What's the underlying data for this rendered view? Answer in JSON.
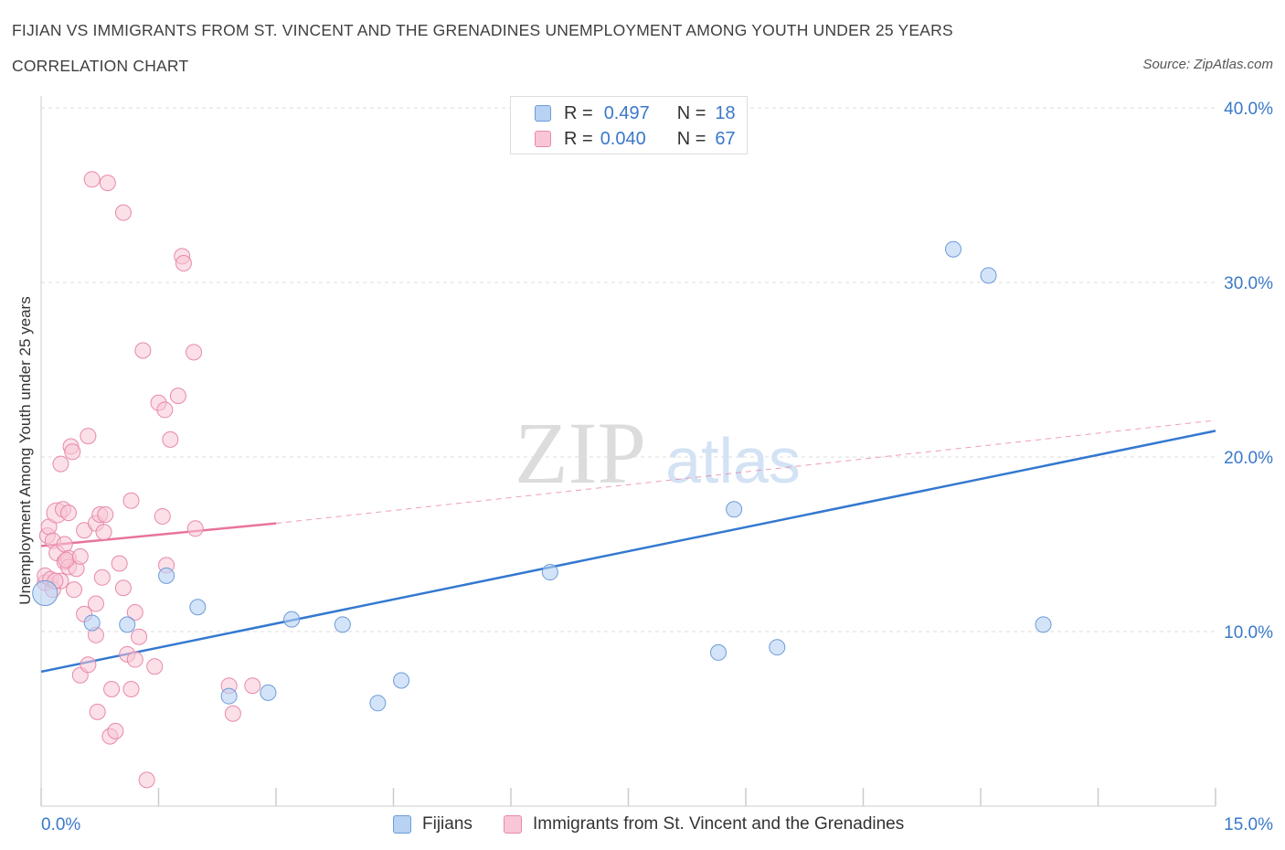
{
  "header": {
    "title": "FIJIAN VS IMMIGRANTS FROM ST. VINCENT AND THE GRENADINES UNEMPLOYMENT AMONG YOUTH UNDER 25 YEARS",
    "subtitle": "CORRELATION CHART",
    "source": "Source: ZipAtlas.com"
  },
  "watermark": {
    "zip": "ZIP",
    "atlas": "atlas"
  },
  "legend_top": {
    "r_label": "R =",
    "n_label": "N =",
    "rows": [
      {
        "r": "0.497",
        "n": "18"
      },
      {
        "r": "0.040",
        "n": "67"
      }
    ]
  },
  "colors": {
    "fijians_fill": "#b8d2f3",
    "fijians_stroke": "#6c9bd8",
    "fijians_line": "#3478d0",
    "svg_fill": "#f8c6d6",
    "svg_stroke": "#e889a9",
    "svg_line": "#e8749a",
    "axis_label": "#3a78c9",
    "grid": "#dddddd"
  },
  "chart_data": {
    "type": "scatter",
    "xlabel": "",
    "ylabel": "Unemployment Among Youth under 25 years",
    "xlim": [
      0,
      15
    ],
    "ylim": [
      0,
      40
    ],
    "x_tick_labels": [
      "0.0%",
      "15.0%"
    ],
    "y_ticks": [
      10,
      20,
      30,
      40
    ],
    "y_tick_labels": [
      "10.0%",
      "20.0%",
      "30.0%",
      "40.0%"
    ],
    "grid": true,
    "legend_position": "bottom",
    "series": [
      {
        "name": "Fijians",
        "r": 0.497,
        "n": 18,
        "trend": {
          "x0": 0,
          "y0": 7.7,
          "x1": 15,
          "y1": 21.5,
          "dashed_to": null
        },
        "points": [
          [
            0.05,
            12.2,
            1.6
          ],
          [
            0.65,
            10.5,
            1
          ],
          [
            1.1,
            10.4,
            1
          ],
          [
            1.6,
            13.2,
            1
          ],
          [
            2.0,
            11.4,
            1
          ],
          [
            2.4,
            6.3,
            1
          ],
          [
            2.9,
            6.5,
            1
          ],
          [
            3.2,
            10.7,
            1
          ],
          [
            3.85,
            10.4,
            1
          ],
          [
            4.3,
            5.9,
            1
          ],
          [
            4.6,
            7.2,
            1
          ],
          [
            6.5,
            13.4,
            1
          ],
          [
            8.65,
            8.8,
            1
          ],
          [
            8.85,
            17.0,
            1
          ],
          [
            9.4,
            9.1,
            1
          ],
          [
            11.65,
            31.9,
            1
          ],
          [
            12.1,
            30.4,
            1
          ],
          [
            12.8,
            10.4,
            1
          ]
        ]
      },
      {
        "name": "Immigrants from St. Vincent and the Grenadines",
        "r": 0.04,
        "n": 67,
        "trend": {
          "x0": 0,
          "y0": 14.9,
          "x1": 3.0,
          "y1": 16.2,
          "dashed_to": {
            "x": 15,
            "y": 22.1
          }
        },
        "points": [
          [
            0.05,
            12.8,
            1
          ],
          [
            0.05,
            13.2,
            1
          ],
          [
            0.08,
            15.5,
            1
          ],
          [
            0.1,
            16.0,
            1
          ],
          [
            0.12,
            13.0,
            1
          ],
          [
            0.15,
            12.4,
            1
          ],
          [
            0.15,
            15.2,
            1
          ],
          [
            0.2,
            16.8,
            1.3
          ],
          [
            0.2,
            14.5,
            1
          ],
          [
            0.25,
            19.6,
            1
          ],
          [
            0.25,
            12.9,
            1
          ],
          [
            0.28,
            17.0,
            1
          ],
          [
            0.3,
            14.0,
            1
          ],
          [
            0.3,
            15.0,
            1
          ],
          [
            0.35,
            16.8,
            1
          ],
          [
            0.35,
            14.2,
            1
          ],
          [
            0.35,
            13.7,
            1
          ],
          [
            0.38,
            20.6,
            1
          ],
          [
            0.4,
            20.3,
            1
          ],
          [
            0.42,
            12.4,
            1
          ],
          [
            0.45,
            13.6,
            1
          ],
          [
            0.5,
            7.5,
            1
          ],
          [
            0.55,
            15.8,
            1
          ],
          [
            0.55,
            11.0,
            1
          ],
          [
            0.6,
            21.2,
            1
          ],
          [
            0.6,
            8.1,
            1
          ],
          [
            0.65,
            35.9,
            1
          ],
          [
            0.7,
            16.2,
            1
          ],
          [
            0.7,
            11.6,
            1
          ],
          [
            0.7,
            9.8,
            1
          ],
          [
            0.72,
            5.4,
            1
          ],
          [
            0.75,
            16.7,
            1
          ],
          [
            0.78,
            13.1,
            1
          ],
          [
            0.8,
            15.7,
            1
          ],
          [
            0.82,
            16.7,
            1
          ],
          [
            0.85,
            35.7,
            1
          ],
          [
            0.88,
            4.0,
            1
          ],
          [
            0.9,
            6.7,
            1
          ],
          [
            0.95,
            4.3,
            1
          ],
          [
            1.0,
            13.9,
            1
          ],
          [
            1.05,
            34.0,
            1
          ],
          [
            1.05,
            12.5,
            1
          ],
          [
            1.1,
            8.7,
            1
          ],
          [
            1.15,
            17.5,
            1
          ],
          [
            1.15,
            6.7,
            1
          ],
          [
            1.2,
            11.1,
            1
          ],
          [
            1.2,
            8.4,
            1
          ],
          [
            1.25,
            9.7,
            1
          ],
          [
            1.3,
            26.1,
            1
          ],
          [
            1.35,
            1.5,
            1
          ],
          [
            1.45,
            8.0,
            1
          ],
          [
            1.5,
            23.1,
            1
          ],
          [
            1.55,
            16.6,
            1
          ],
          [
            1.58,
            22.7,
            1
          ],
          [
            1.6,
            13.8,
            1
          ],
          [
            1.65,
            21.0,
            1
          ],
          [
            1.75,
            23.5,
            1
          ],
          [
            1.8,
            31.5,
            1
          ],
          [
            1.82,
            31.1,
            1
          ],
          [
            1.95,
            26.0,
            1
          ],
          [
            1.97,
            15.9,
            1
          ],
          [
            2.4,
            6.9,
            1
          ],
          [
            2.45,
            5.3,
            1
          ],
          [
            2.7,
            6.9,
            1
          ],
          [
            0.18,
            12.9,
            1
          ],
          [
            0.32,
            14.1,
            1
          ],
          [
            0.5,
            14.3,
            1
          ]
        ]
      }
    ]
  },
  "legend_bottom": [
    {
      "label": "Fijians"
    },
    {
      "label": "Immigrants from St. Vincent and the Grenadines"
    }
  ]
}
